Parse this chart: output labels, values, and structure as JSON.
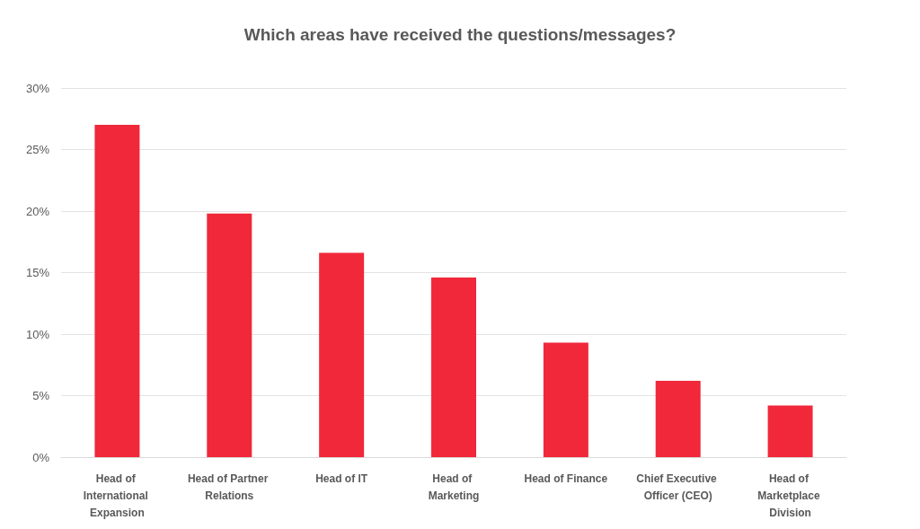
{
  "chart_data": {
    "type": "bar",
    "title": "Which areas have received the questions/messages?",
    "categories": [
      "Head of International Expansion",
      "Head of Partner Relations",
      "Head of IT",
      "Head of Marketing",
      "Head of Finance",
      "Chief Executive Officer (CEO)",
      "Head of Marketplace Division"
    ],
    "values": [
      27,
      19.8,
      16.6,
      14.6,
      9.3,
      6.2,
      4.2
    ],
    "color": "#f0283a",
    "ylim": [
      0,
      30
    ],
    "yticks": [
      {
        "value": 0,
        "label": "0%"
      },
      {
        "value": 5,
        "label": "5%"
      },
      {
        "value": 10,
        "label": "10%"
      },
      {
        "value": 15,
        "label": "15%"
      },
      {
        "value": 20,
        "label": "20%"
      },
      {
        "value": 25,
        "label": "25%"
      },
      {
        "value": 30,
        "label": "30%"
      }
    ],
    "grid": "y"
  }
}
